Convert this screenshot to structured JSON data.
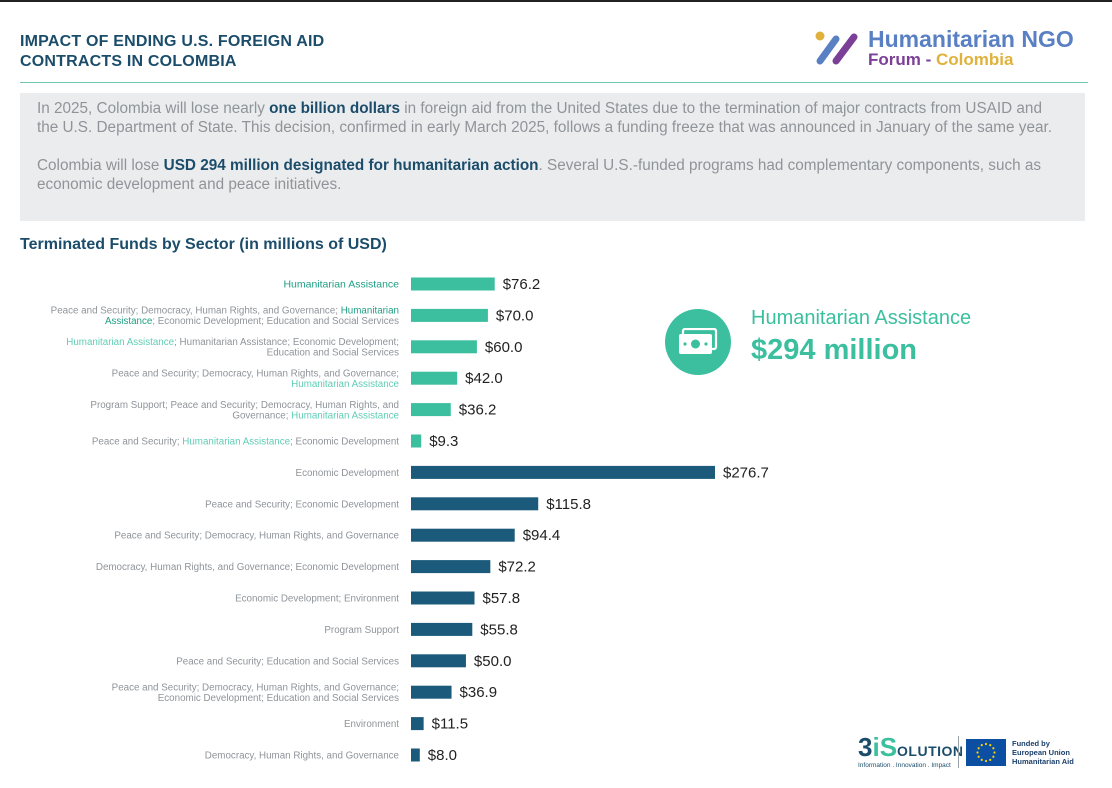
{
  "header": {
    "title_line1": "IMPACT OF  ENDING U.S. FOREIGN AID",
    "title_line2": "CONTRACTS IN COLOMBIA",
    "logo_line1": "Humanitarian NGO",
    "logo_line2_part1": "Forum - ",
    "logo_line2_part2": "Colombia"
  },
  "intro": {
    "p1_before": "In 2025, Colombia will lose nearly ",
    "p1_bold": "one billion dollars",
    "p1_after": " in foreign aid from the United States due to the termination of major contracts from USAID and the U.S. Department of State. This decision, confirmed in early March 2025, follows a funding freeze that was announced in January of the same year.",
    "p2_before": "Colombia will lose ",
    "p2_bold": "USD 294 million designated for humanitarian action",
    "p2_after": ". Several U.S.-funded programs had complementary components, such as economic development and peace initiatives."
  },
  "highlight": {
    "label": "Humanitarian Assistance",
    "value": "$294 million"
  },
  "chart_data": {
    "type": "bar",
    "orientation": "horizontal",
    "title": "Terminated Funds by Sector (in millions of USD)",
    "value_prefix": "$",
    "categories": [
      "Humanitarian Assistance",
      "Peace and Security; Democracy, Human Rights, and Governance; Humanitarian Assistance; Economic Development; Education and Social Services",
      "Humanitarian Assistance; Humanitarian Assistance; Economic Development; Education and Social Services",
      "Peace and Security; Democracy, Human Rights, and Governance; Humanitarian Assistance",
      "Program Support; Peace and Security; Democracy, Human Rights, and Governance; Humanitarian Assistance",
      "Peace and Security; Humanitarian Assistance; Economic Development",
      "Economic Development",
      "Peace and Security; Economic Development",
      "Peace and Security; Democracy, Human Rights, and Governance",
      "Democracy, Human Rights, and Governance; Economic Development",
      "Economic Development; Environment",
      "Program Support",
      "Peace and Security; Education and Social Services",
      "Peace and Security; Democracy, Human Rights, and Governance; Economic Development; Education and Social Services",
      "Environment",
      "Democracy, Human Rights, and Governance"
    ],
    "label_segments": [
      [
        [
          "Humanitarian Assistance",
          "hl"
        ]
      ],
      [
        [
          "Peace and Security; Democracy, Human Rights, and Governance; ",
          "g"
        ],
        [
          "Humanitarian",
          "hl"
        ],
        [
          "|",
          "br"
        ],
        [
          "Assistance",
          "hl"
        ],
        [
          ";  Economic Development; Education and Social Services",
          "g"
        ]
      ],
      [
        [
          "Humanitarian Assistance",
          "ht"
        ],
        [
          "; Humanitarian Assistance; Economic Development;",
          "g"
        ],
        [
          "|",
          "br"
        ],
        [
          "Education and Social Services",
          "g"
        ]
      ],
      [
        [
          "Peace and Security; Democracy, Human Rights, and Governance;",
          "g"
        ],
        [
          "|",
          "br"
        ],
        [
          "Humanitarian Assistance",
          "ht"
        ]
      ],
      [
        [
          "Program Support; Peace and Security; Democracy, Human Rights, and",
          "g"
        ],
        [
          "|",
          "br"
        ],
        [
          "Governance;  ",
          "g"
        ],
        [
          "Humanitarian Assistance",
          "ht"
        ]
      ],
      [
        [
          "Peace and Security; ",
          "g"
        ],
        [
          "Humanitarian Assistance",
          "ht"
        ],
        [
          ";  Economic Development",
          "g"
        ]
      ],
      [
        [
          "Economic Development",
          "g"
        ]
      ],
      [
        [
          "Peace and Security; Economic Development",
          "g"
        ]
      ],
      [
        [
          "Peace and Security; Democracy, Human Rights, and Governance",
          "g"
        ]
      ],
      [
        [
          "Democracy, Human Rights, and Governance; Economic Development",
          "g"
        ]
      ],
      [
        [
          "Economic Development; Environment",
          "g"
        ]
      ],
      [
        [
          "Program Support",
          "g"
        ]
      ],
      [
        [
          "Peace and Security; Education and Social Services",
          "g"
        ]
      ],
      [
        [
          "Peace and Security; Democracy, Human Rights, and Governance;",
          "g"
        ],
        [
          "|",
          "br"
        ],
        [
          "Economic Development; Education and Social Services",
          "g"
        ]
      ],
      [
        [
          "Environment",
          "g"
        ]
      ],
      [
        [
          "Democracy, Human Rights, and Governance",
          "g"
        ]
      ]
    ],
    "values": [
      76.2,
      70.0,
      60.0,
      42.0,
      36.2,
      9.3,
      276.7,
      115.8,
      94.4,
      72.2,
      57.8,
      55.8,
      50.0,
      36.9,
      11.5,
      8.0
    ],
    "value_labels": [
      "$76.2",
      "$70.0",
      "$60.0",
      "$42.0",
      "$36.2",
      "$9.3",
      "$276.7",
      "$115.8",
      "$94.4",
      "$72.2",
      "$57.8",
      "$55.8",
      "$50.0",
      "$36.9",
      "$11.5",
      "$8.0"
    ],
    "bar_groups": [
      "humanitarian",
      "humanitarian",
      "humanitarian",
      "humanitarian",
      "humanitarian",
      "humanitarian",
      "other",
      "other",
      "other",
      "other",
      "other",
      "other",
      "other",
      "other",
      "other",
      "other"
    ],
    "colors": {
      "humanitarian": "#3bbf9f",
      "other": "#1b5a7a",
      "label_gray": "#8f9499",
      "label_highlight": "#1f9e84",
      "label_highlight_light": "#5fcdb5"
    },
    "grid": false,
    "xlim": [
      0,
      276.7
    ]
  },
  "footer": {
    "brand_3": "3",
    "brand_is": "iS",
    "brand_olution": "OLUTION",
    "tagline": "Information . Innovation . Impact",
    "eu_line1": "Funded by",
    "eu_line2": "European Union",
    "eu_line3": "Humanitarian Aid"
  }
}
